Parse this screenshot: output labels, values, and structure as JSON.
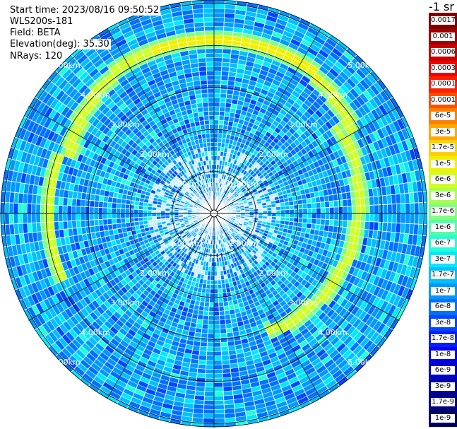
{
  "header": {
    "start_time": "Start time: 2023/08/16 09:50:52",
    "instrument": "WLS200s-181",
    "field": "Field: BETA",
    "elevation": "Elevation(deg): 35.30",
    "nrays": "NRays: 120"
  },
  "colorbar": {
    "unit_label": "-1 sr",
    "labels": [
      "0.0017",
      "0.001",
      "0.0006",
      "0.0003",
      "0.00017",
      "0.0001",
      "6e-5",
      "3e-5",
      "1.7e-5",
      "1e-5",
      "6e-6",
      "3e-6",
      "1.7e-6",
      "1e-6",
      "6e-7",
      "3e-7",
      "1.7e-7",
      "1e-7",
      "6e-8",
      "3e-8",
      "1.7e-8",
      "1e-8",
      "6e-9",
      "3e-9",
      "1.7e-9",
      "1e-9"
    ],
    "colors": [
      "#800000",
      "#a00000",
      "#c80000",
      "#f00000",
      "#ff2000",
      "#ff5000",
      "#ff8000",
      "#ffa800",
      "#ffd000",
      "#f0f000",
      "#d0ff20",
      "#a8ff50",
      "#80ff80",
      "#50ffa8",
      "#20ffd8",
      "#00e8ff",
      "#00c0ff",
      "#0098ff",
      "#0070ff",
      "#0048ff",
      "#0020ff",
      "#0000f0",
      "#0000c8",
      "#0000a0",
      "#000080",
      "#000060"
    ]
  },
  "chart_data": {
    "type": "heatmap",
    "projection": "polar PPI",
    "field": "BETA",
    "elevation_deg": 35.3,
    "nrays": 120,
    "range_rings_km": [
      1.0,
      2.0,
      3.0,
      4.0,
      5.0
    ],
    "ring_labels": [
      "1.00km",
      "2.00km",
      "3.00km",
      "4.00km",
      "5.00km"
    ],
    "azimuth_spokes_deg": [
      0,
      30,
      60,
      90,
      120,
      150,
      180,
      210,
      240,
      270,
      300,
      330
    ],
    "max_range_km": 5.1,
    "background_beta": "1e-8 to 1e-7",
    "feature": "aerosol/cloud layer arc at ~4.1 km range on northern sector, ~3.4 km on eastern sector, beta ~1e-5"
  }
}
